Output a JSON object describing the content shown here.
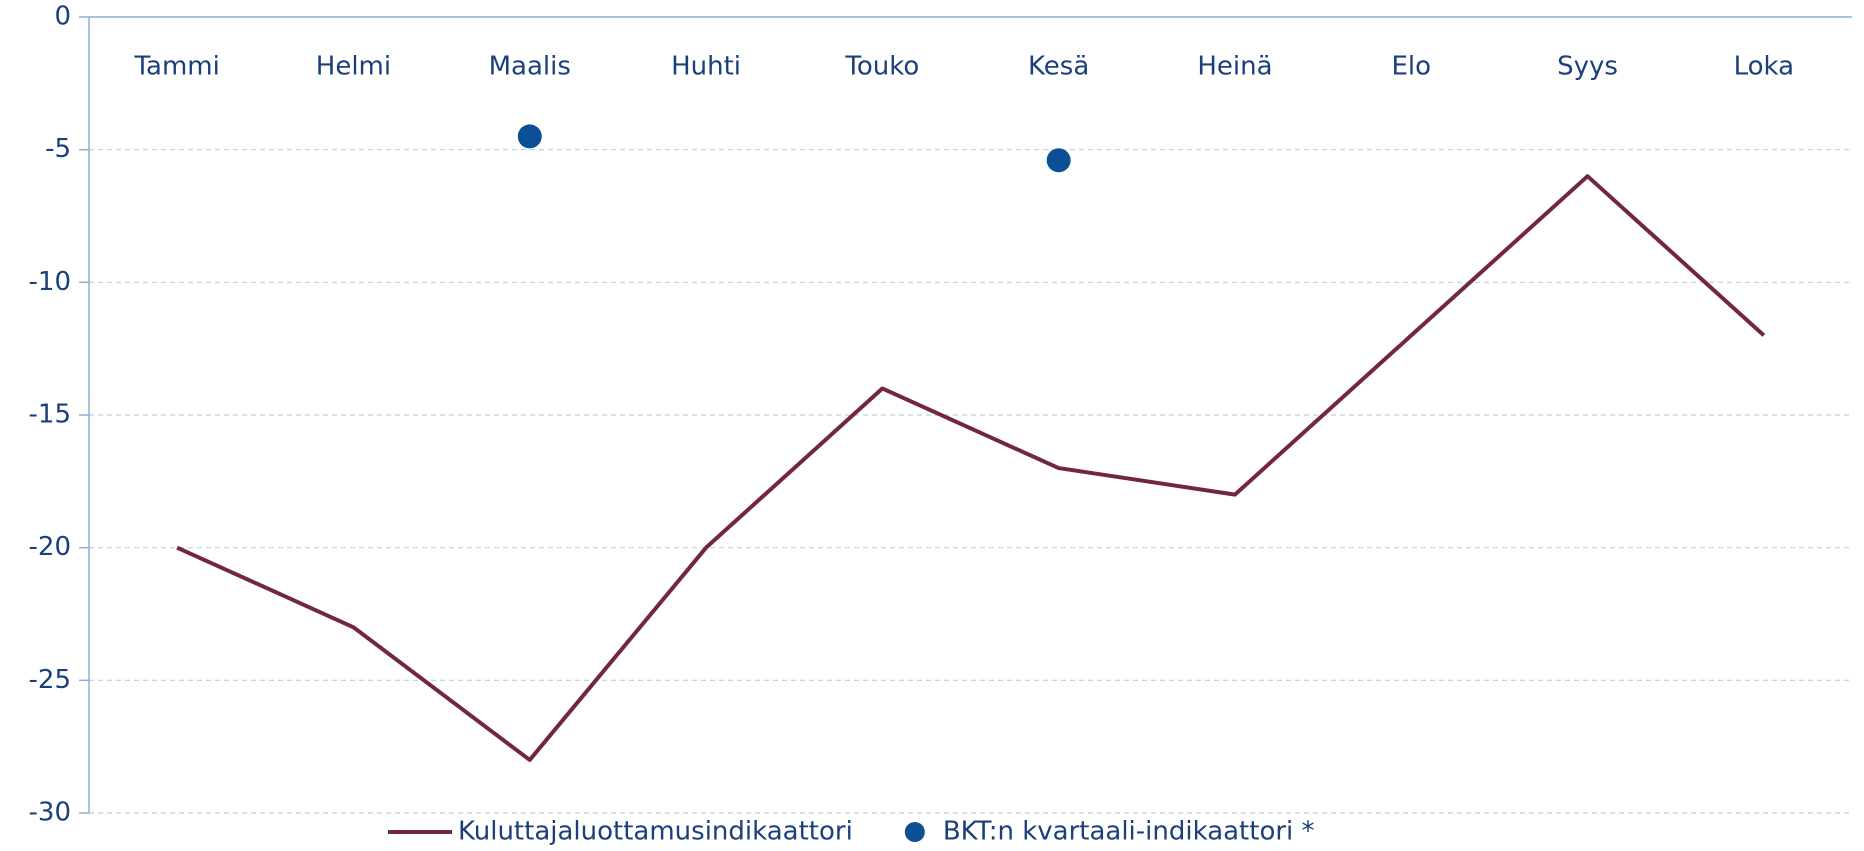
{
  "chart_data": {
    "type": "line",
    "categories": [
      "Tammi",
      "Helmi",
      "Maalis",
      "Huhti",
      "Touko",
      "Kesä",
      "Heinä",
      "Elo",
      "Syys",
      "Loka"
    ],
    "series": [
      {
        "name": "Kuluttajaluottamusindikaattori",
        "color": "#722640",
        "values": [
          -20,
          -23,
          -28,
          -20,
          -14,
          -17,
          -18,
          -12,
          -6,
          -12
        ]
      },
      {
        "name": "BKT:n kvartaali-indikaattori *",
        "color": "#0b4f96",
        "marker": "dot",
        "values": [
          null,
          null,
          -4.5,
          null,
          null,
          -5.4,
          null,
          null,
          null,
          null
        ]
      }
    ],
    "ylim": [
      -30,
      0
    ],
    "yticks": [
      0,
      -5,
      -10,
      -15,
      -20,
      -25,
      -30
    ],
    "grid": true,
    "legend": "bottom"
  }
}
